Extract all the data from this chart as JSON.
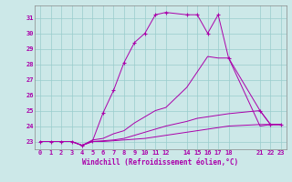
{
  "xlabel": "Windchill (Refroidissement éolien,°C)",
  "xlim": [
    -0.5,
    23.5
  ],
  "ylim": [
    22.5,
    31.8
  ],
  "yticks": [
    23,
    24,
    25,
    26,
    27,
    28,
    29,
    30,
    31
  ],
  "xticks": [
    0,
    1,
    2,
    3,
    4,
    5,
    6,
    7,
    8,
    9,
    10,
    11,
    12,
    14,
    15,
    16,
    17,
    18,
    21,
    22,
    23
  ],
  "background_color": "#cce8e8",
  "line_color": "#aa00aa",
  "grid_color": "#99cccc",
  "series": [
    {
      "x": [
        0,
        1,
        2,
        3,
        4,
        5,
        6,
        7,
        8,
        9,
        10,
        11,
        12,
        14,
        15,
        16,
        17,
        18,
        21,
        22,
        23
      ],
      "y": [
        23,
        23,
        23,
        23,
        22.75,
        23.05,
        24.85,
        26.3,
        28.1,
        29.4,
        30.0,
        31.2,
        31.35,
        31.2,
        31.2,
        30.0,
        31.2,
        28.4,
        25.0,
        24.1,
        24.1
      ],
      "marker": "+",
      "linestyle": "-"
    },
    {
      "x": [
        0,
        3,
        4,
        5,
        6,
        7,
        8,
        9,
        10,
        11,
        12,
        14,
        15,
        16,
        17,
        18,
        21,
        22,
        23
      ],
      "y": [
        23,
        23,
        22.75,
        23.1,
        23.2,
        23.5,
        23.7,
        24.2,
        24.6,
        25.0,
        25.2,
        26.5,
        27.5,
        28.5,
        28.4,
        28.4,
        24.0,
        24.1,
        24.1
      ],
      "marker": null,
      "linestyle": "-"
    },
    {
      "x": [
        0,
        1,
        2,
        3,
        4,
        5,
        6,
        7,
        8,
        9,
        10,
        11,
        12,
        14,
        15,
        16,
        17,
        18,
        21,
        22,
        23
      ],
      "y": [
        23,
        23,
        23,
        23,
        22.75,
        23.0,
        23.05,
        23.1,
        23.2,
        23.4,
        23.6,
        23.8,
        24.0,
        24.3,
        24.5,
        24.6,
        24.7,
        24.8,
        25.0,
        24.1,
        24.1
      ],
      "marker": null,
      "linestyle": "-"
    },
    {
      "x": [
        0,
        1,
        2,
        3,
        4,
        5,
        6,
        7,
        8,
        9,
        10,
        11,
        12,
        14,
        15,
        16,
        17,
        18,
        21,
        22,
        23
      ],
      "y": [
        23,
        23,
        23,
        23,
        22.75,
        23.0,
        23.0,
        23.05,
        23.1,
        23.15,
        23.2,
        23.3,
        23.4,
        23.6,
        23.7,
        23.8,
        23.9,
        24.0,
        24.1,
        24.1,
        24.1
      ],
      "marker": null,
      "linestyle": "-"
    }
  ]
}
